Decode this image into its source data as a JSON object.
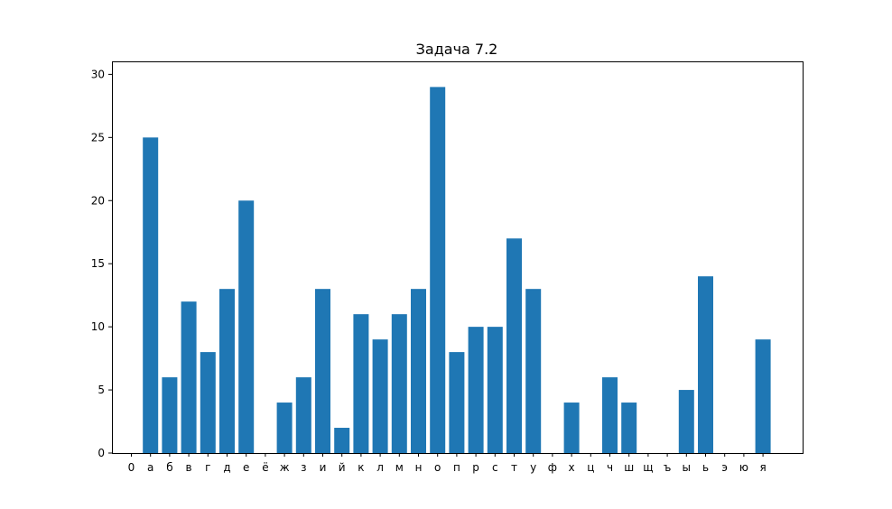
{
  "chart_data": {
    "type": "bar",
    "title": "Задача 7.2",
    "xlabel": "",
    "ylabel": "",
    "categories": [
      "0",
      "а",
      "б",
      "в",
      "г",
      "д",
      "е",
      "ё",
      "ж",
      "з",
      "и",
      "й",
      "к",
      "л",
      "м",
      "н",
      "о",
      "п",
      "р",
      "с",
      "т",
      "у",
      "ф",
      "х",
      "ц",
      "ч",
      "ш",
      "щ",
      "ъ",
      "ы",
      "ь",
      "э",
      "ю",
      "я"
    ],
    "values": [
      0,
      25,
      6,
      12,
      8,
      13,
      20,
      0,
      4,
      6,
      13,
      2,
      11,
      9,
      11,
      13,
      29,
      8,
      10,
      10,
      17,
      13,
      0,
      4,
      0,
      6,
      4,
      0,
      0,
      5,
      14,
      0,
      0,
      9
    ],
    "ylim": [
      0,
      30
    ],
    "yticks": [
      0,
      5,
      10,
      15,
      20,
      25,
      30
    ],
    "grid": false,
    "bar_color": "#1f77b4"
  }
}
